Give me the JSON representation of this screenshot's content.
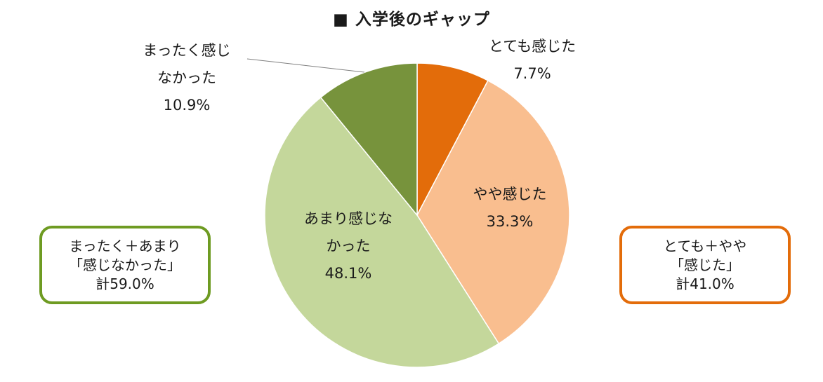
{
  "title": "■ 入学後のギャップ",
  "colors": {
    "strong": "#E36C0A",
    "some": "#F9BE8F",
    "not_much": "#C4D79B",
    "not_at_all": "#77933C",
    "box_green": "#6E9B22",
    "box_orange": "#E36C0A"
  },
  "chart_data": {
    "type": "pie",
    "title": "■ 入学後のギャップ",
    "start": "12 o'clock, clockwise",
    "slices": [
      {
        "label": "とても感じた",
        "value": 7.7,
        "value_label": "7.7%",
        "color": "#E36C0A"
      },
      {
        "label": "やや感じた",
        "value": 33.3,
        "value_label": "33.3%",
        "color": "#F9BE8F"
      },
      {
        "label": "あまり感じなかった",
        "value": 48.1,
        "value_label": "48.1%",
        "color": "#C4D79B"
      },
      {
        "label": "まったく感じなかった",
        "value": 10.9,
        "value_label": "10.9%",
        "color": "#77933C"
      }
    ]
  },
  "labels": {
    "strong": {
      "line1": "とても感じた",
      "pct": "7.7%"
    },
    "some": {
      "line1": "やや感じた",
      "pct": "33.3%"
    },
    "not_much": {
      "line1": "あまり感じな",
      "line2": "かった",
      "pct": "48.1%"
    },
    "not_at_all": {
      "line1": "まったく感じ",
      "line2": "なかった",
      "pct": "10.9%"
    }
  },
  "summary_left": {
    "line1": "まったく＋あまり",
    "line2": "「感じなかった」",
    "line3": "計59.0%"
  },
  "summary_right": {
    "line1": "とても＋やや",
    "line2": "「感じた」",
    "line3": "計41.0%"
  }
}
